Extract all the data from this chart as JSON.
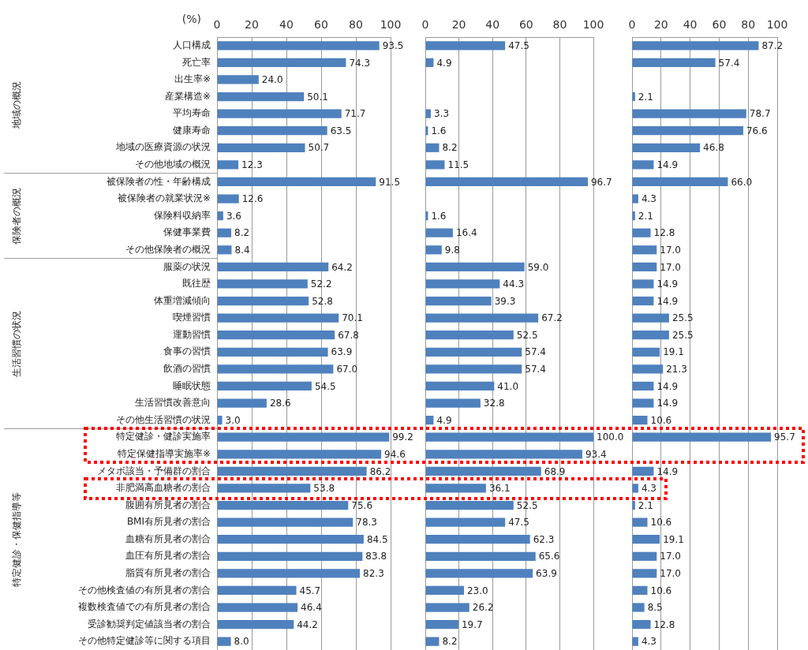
{
  "chart_data": [
    {
      "type": "bar",
      "orientation": "horizontal",
      "xlabel": "(%)",
      "categories": [
        "人口構成",
        "死亡率",
        "出生率※",
        "産業構造※",
        "平均寿命",
        "健康寿命",
        "地域の医療資源の状況",
        "その他地域の概況",
        "被保険者の性・年齢構成",
        "被保険者の就業状況※",
        "保険料収納率",
        "保健事業費",
        "その他保険者の概況",
        "服薬の状況",
        "既往歴",
        "体重増減傾向",
        "喫煙習慣",
        "運動習慣",
        "食事の習慣",
        "飲酒の習慣",
        "睡眠状態",
        "生活習慣改善意向",
        "その他生活習慣の状況",
        "特定健診・健診実施率",
        "特定保健指導実施率※",
        "メタボ該当・予備群の割合",
        "非肥満高血糖者の割合",
        "腹囲有所見者の割合",
        "BMI有所見者の割合",
        "血糖有所見者の割合",
        "血圧有所見者の割合",
        "脂質有所見者の割合",
        "その他検査値の有所見者の割合",
        "複数検査値での有所見者の割合",
        "受診勧奨判定値該当者の割合",
        "その他特定健診等に関する項目"
      ],
      "values": [
        93.5,
        74.3,
        24.0,
        50.1,
        71.7,
        63.5,
        50.7,
        12.3,
        91.5,
        12.6,
        3.6,
        8.2,
        8.4,
        64.2,
        52.2,
        52.8,
        70.1,
        67.8,
        63.9,
        67.0,
        54.5,
        28.6,
        3.0,
        99.2,
        94.6,
        86.2,
        53.8,
        75.6,
        78.3,
        84.5,
        83.8,
        82.3,
        45.7,
        46.4,
        44.2,
        8.0
      ],
      "value_labels": [
        "93.5",
        "74.3",
        "24.0",
        "50.1",
        "71.7",
        "63.5",
        "50.7",
        "12.3",
        "91.5",
        "12.6",
        "3.6",
        "8.2",
        "8.4",
        "64.2",
        "52.2",
        "52.8",
        "70.1",
        "67.8",
        "63.9",
        "67.0",
        "54.5",
        "28.6",
        "3.0",
        "99.2",
        "94.6",
        "86.2",
        "53.8",
        "75.6",
        "78.3",
        "84.5",
        "83.8",
        "82.3",
        "45.7",
        "46.4",
        "44.2",
        "8.0"
      ],
      "color": "#4f81bd",
      "xlim": [
        0,
        100
      ],
      "xticks": [
        0,
        20,
        40,
        60,
        80,
        100
      ],
      "grid": "x",
      "annotations": [
        "地域の概況",
        "保険者の概況",
        "生活習慣の状況",
        "特定健診・保健指導等"
      ]
    },
    {
      "type": "bar",
      "orientation": "horizontal",
      "tick_labels": "x",
      "categories": [
        null,
        null,
        null,
        null,
        null,
        null,
        null,
        null,
        null,
        null,
        null,
        null,
        null,
        null,
        null,
        null,
        null,
        null,
        null,
        null,
        null,
        null,
        null,
        null,
        null,
        null,
        null,
        null,
        null,
        null,
        null,
        null,
        null,
        null,
        null,
        null
      ],
      "values": [
        47.5,
        4.9,
        null,
        null,
        3.3,
        1.6,
        8.2,
        11.5,
        96.7,
        null,
        1.6,
        16.4,
        9.8,
        59.0,
        44.3,
        39.3,
        67.2,
        52.5,
        57.4,
        57.4,
        41.0,
        32.8,
        4.9,
        100.0,
        93.4,
        68.9,
        36.1,
        52.5,
        47.5,
        62.3,
        65.6,
        63.9,
        23.0,
        26.2,
        19.7,
        8.2
      ],
      "value_labels": [
        "47.5",
        "4.9",
        null,
        null,
        "3.3",
        "1.6",
        "8.2",
        "11.5",
        "96.7",
        null,
        "1.6",
        "16.4",
        "9.8",
        "59.0",
        "44.3",
        "39.3",
        "67.2",
        "52.5",
        "57.4",
        "57.4",
        "41.0",
        "32.8",
        "4.9",
        "100.0",
        "93.4",
        "68.9",
        "36.1",
        "52.5",
        "47.5",
        "62.3",
        "65.6",
        "63.9",
        "23.0",
        "26.2",
        "19.7",
        "8.2"
      ],
      "color": "#4f81bd",
      "xlim": [
        0,
        100
      ],
      "xticks": [
        0,
        20,
        40,
        60,
        80,
        100
      ],
      "grid": "x"
    },
    {
      "type": "bar",
      "orientation": "horizontal",
      "tick_labels": "x",
      "categories": [
        null,
        null,
        null,
        null,
        null,
        null,
        null,
        null,
        null,
        null,
        null,
        null,
        null,
        null,
        null,
        null,
        null,
        null,
        null,
        null,
        null,
        null,
        null,
        null,
        null,
        null,
        null,
        null,
        null,
        null,
        null,
        null,
        null,
        null,
        null,
        null
      ],
      "values": [
        87.2,
        57.4,
        null,
        2.1,
        78.7,
        76.6,
        46.8,
        14.9,
        66.0,
        4.3,
        2.1,
        12.8,
        17.0,
        17.0,
        14.9,
        14.9,
        25.5,
        25.5,
        19.1,
        21.3,
        14.9,
        14.9,
        10.6,
        95.7,
        null,
        14.9,
        4.3,
        2.1,
        10.6,
        19.1,
        17.0,
        17.0,
        10.6,
        8.5,
        12.8,
        4.3
      ],
      "value_labels": [
        "87.2",
        "57.4",
        null,
        "2.1",
        "78.7",
        "76.6",
        "46.8",
        "14.9",
        "66.0",
        "4.3",
        "2.1",
        "12.8",
        "17.0",
        "17.0",
        "14.9",
        "14.9",
        "25.5",
        "25.5",
        "19.1",
        "21.3",
        "14.9",
        "14.9",
        "10.6",
        "95.7",
        null,
        "14.9",
        "4.3",
        "2.1",
        "10.6",
        "19.1",
        "17.0",
        "17.0",
        "10.6",
        "8.5",
        "12.8",
        "4.3"
      ],
      "color": "#4f81bd",
      "xlim": [
        0,
        100
      ],
      "xticks": [
        0,
        20,
        40,
        60,
        80,
        100
      ],
      "grid": "x"
    }
  ]
}
